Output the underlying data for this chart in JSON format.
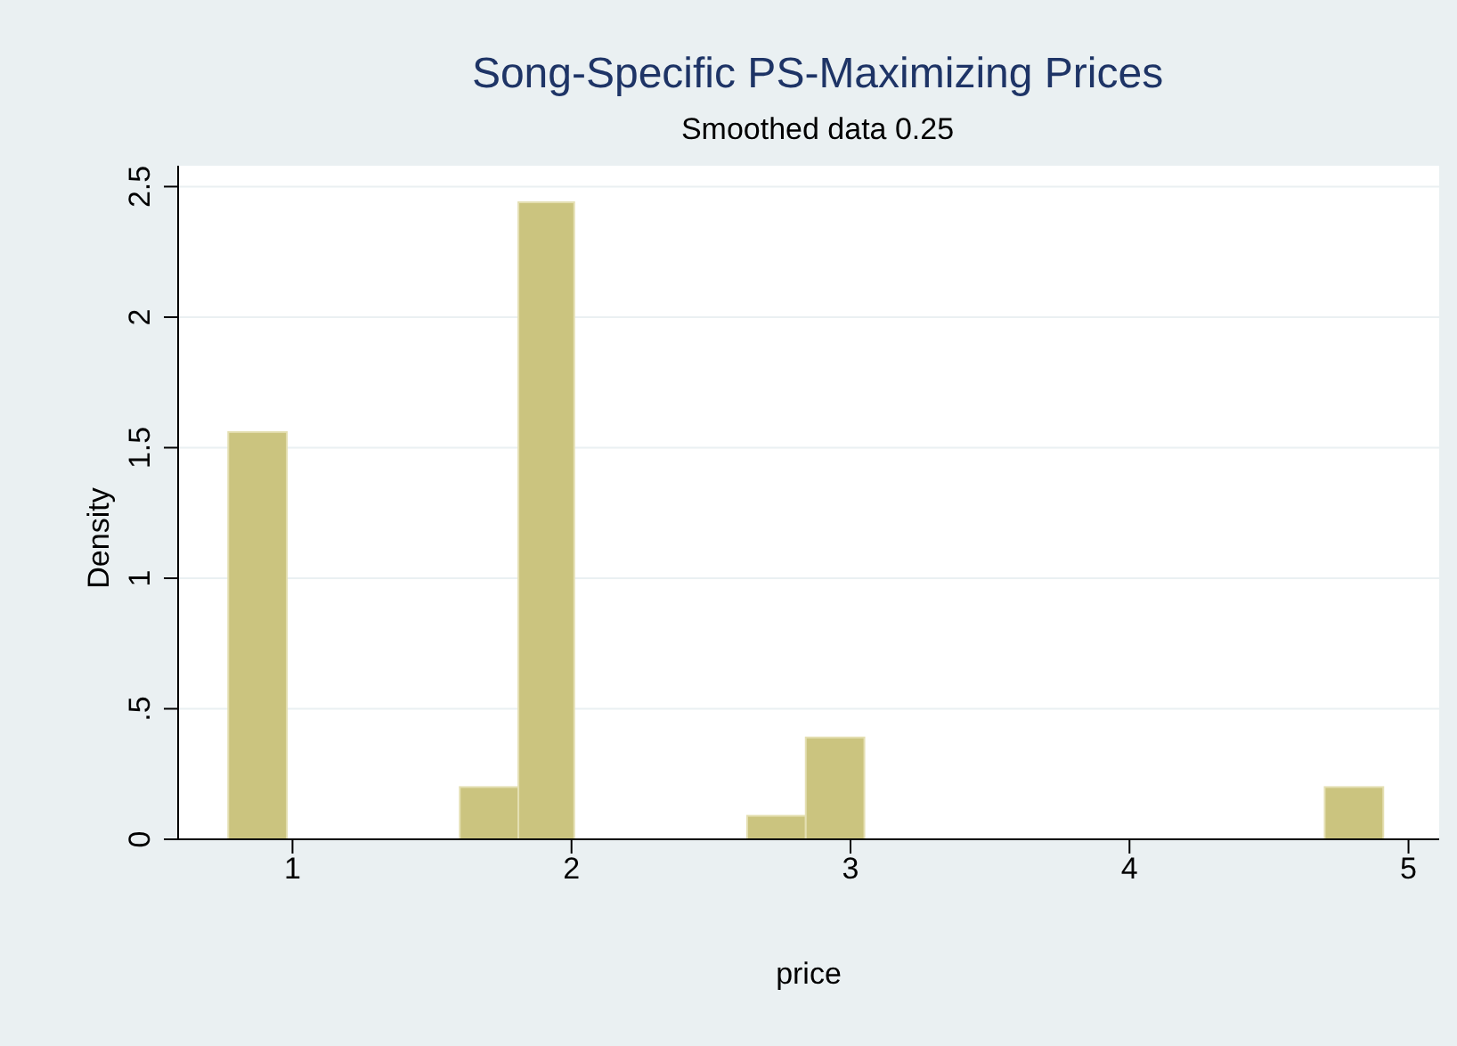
{
  "chart_data": {
    "type": "histogram",
    "title": "Song-Specific PS-Maximizing Prices",
    "subtitle": "Smoothed data 0.25",
    "xlabel": "price",
    "ylabel": "Density",
    "bins": [
      0.77,
      0.98,
      1.6,
      1.81,
      2.01,
      2.63,
      2.84,
      3.05,
      4.7,
      4.91
    ],
    "values": [
      1.56,
      0,
      0.2,
      2.44,
      0,
      0.09,
      0.39,
      0,
      0.2
    ],
    "color": "#cbc47f",
    "xlim": [
      0.59,
      5.11
    ],
    "xticks": [
      1,
      2,
      3,
      4,
      5
    ],
    "ylim": [
      0,
      2.58
    ],
    "yticks": [
      {
        "value": 0,
        "label": "0"
      },
      {
        "value": 0.5,
        "label": ".5"
      },
      {
        "value": 1,
        "label": "1"
      },
      {
        "value": 1.5,
        "label": "1.5"
      },
      {
        "value": 2,
        "label": "2"
      },
      {
        "value": 2.5,
        "label": "2.5"
      }
    ],
    "grid": "y"
  }
}
